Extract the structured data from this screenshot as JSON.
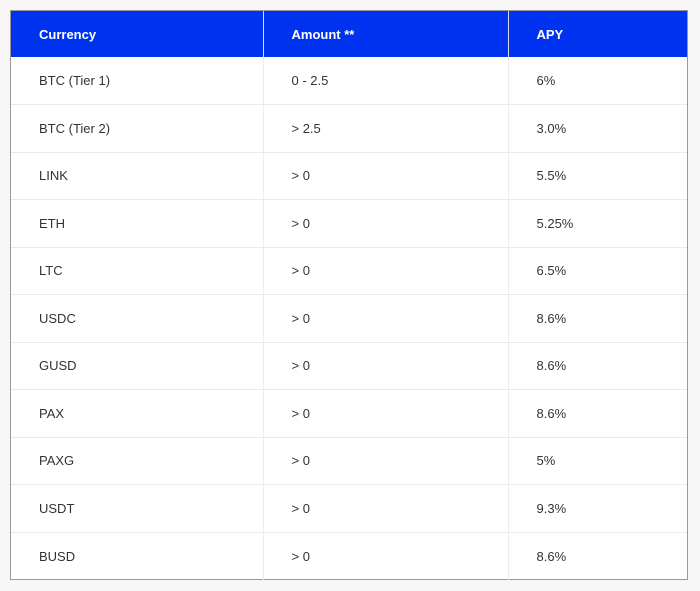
{
  "table": {
    "headers": [
      "Currency",
      "Amount **",
      "APY"
    ],
    "rows": [
      [
        "BTC (Tier 1)",
        "0 - 2.5",
        "6%"
      ],
      [
        "BTC (Tier 2)",
        "> 2.5",
        "3.0%"
      ],
      [
        "LINK",
        "> 0",
        "5.5%"
      ],
      [
        "ETH",
        "> 0",
        "5.25%"
      ],
      [
        "LTC",
        "> 0",
        "6.5%"
      ],
      [
        "USDC",
        "> 0",
        "8.6%"
      ],
      [
        "GUSD",
        "> 0",
        "8.6%"
      ],
      [
        "PAX",
        "> 0",
        "8.6%"
      ],
      [
        "PAXG",
        "> 0",
        "5%"
      ],
      [
        "USDT",
        "> 0",
        "9.3%"
      ],
      [
        "BUSD",
        "> 0",
        "8.6%"
      ]
    ]
  },
  "colors": {
    "header_bg": "#0033f0",
    "header_text": "#ffffff",
    "body_text": "#333333"
  }
}
